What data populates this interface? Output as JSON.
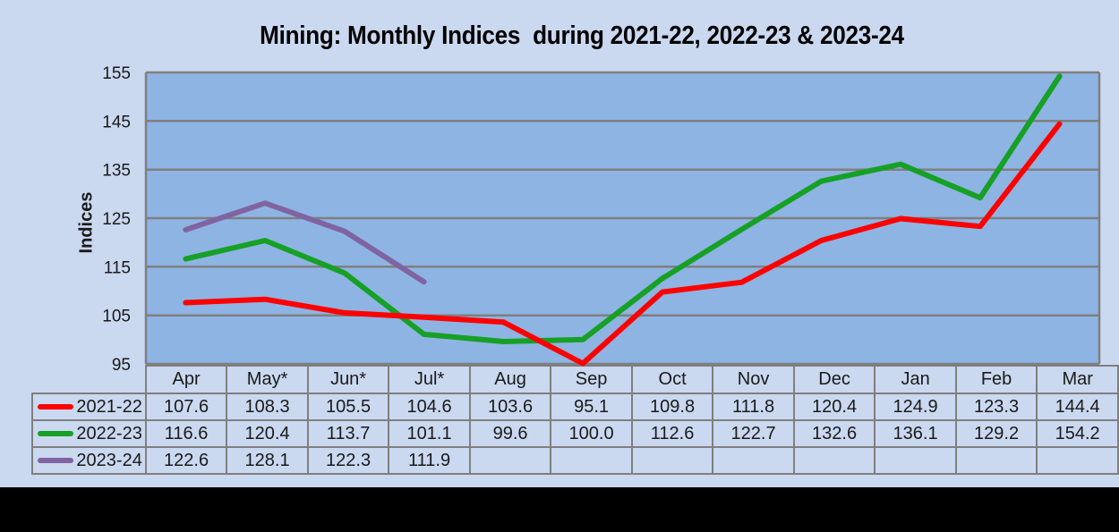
{
  "title": "Mining: Monthly Indices  during 2021-22, 2022-23 & 2023-24",
  "y_axis_title": "Indices",
  "colors": {
    "page_bg": "#CAD8F0",
    "plot_bg": "#8EB4E3",
    "grid": "#7F7F7F",
    "table_border": "#7F7F7F",
    "text": "#1A1A1A",
    "bottom_bar": "#000000"
  },
  "chart_data": {
    "type": "line",
    "title": "Mining: Monthly Indices  during 2021-22, 2022-23 & 2023-24",
    "ylabel": "Indices",
    "xlabel": "",
    "ylim": [
      95,
      155
    ],
    "yticks": [
      95,
      105,
      115,
      125,
      135,
      145,
      155
    ],
    "grid": "horizontal",
    "legend_position": "data-table-left",
    "categories": [
      "Apr",
      "May*",
      "Jun*",
      "Jul*",
      "Aug",
      "Sep",
      "Oct",
      "Nov",
      "Dec",
      "Jan",
      "Feb",
      "Mar"
    ],
    "series": [
      {
        "name": "2021-22",
        "color": "#FF0000",
        "values": [
          107.6,
          108.3,
          105.5,
          104.6,
          103.6,
          95.1,
          109.8,
          111.8,
          120.4,
          124.9,
          123.3,
          144.4
        ]
      },
      {
        "name": "2022-23",
        "color": "#17A026",
        "values": [
          116.6,
          120.4,
          113.7,
          101.1,
          99.6,
          100.0,
          112.6,
          122.7,
          132.6,
          136.1,
          129.2,
          154.2
        ]
      },
      {
        "name": "2023-24",
        "color": "#8064A2",
        "values": [
          122.6,
          128.1,
          122.3,
          111.9,
          null,
          null,
          null,
          null,
          null,
          null,
          null,
          null
        ]
      }
    ]
  }
}
